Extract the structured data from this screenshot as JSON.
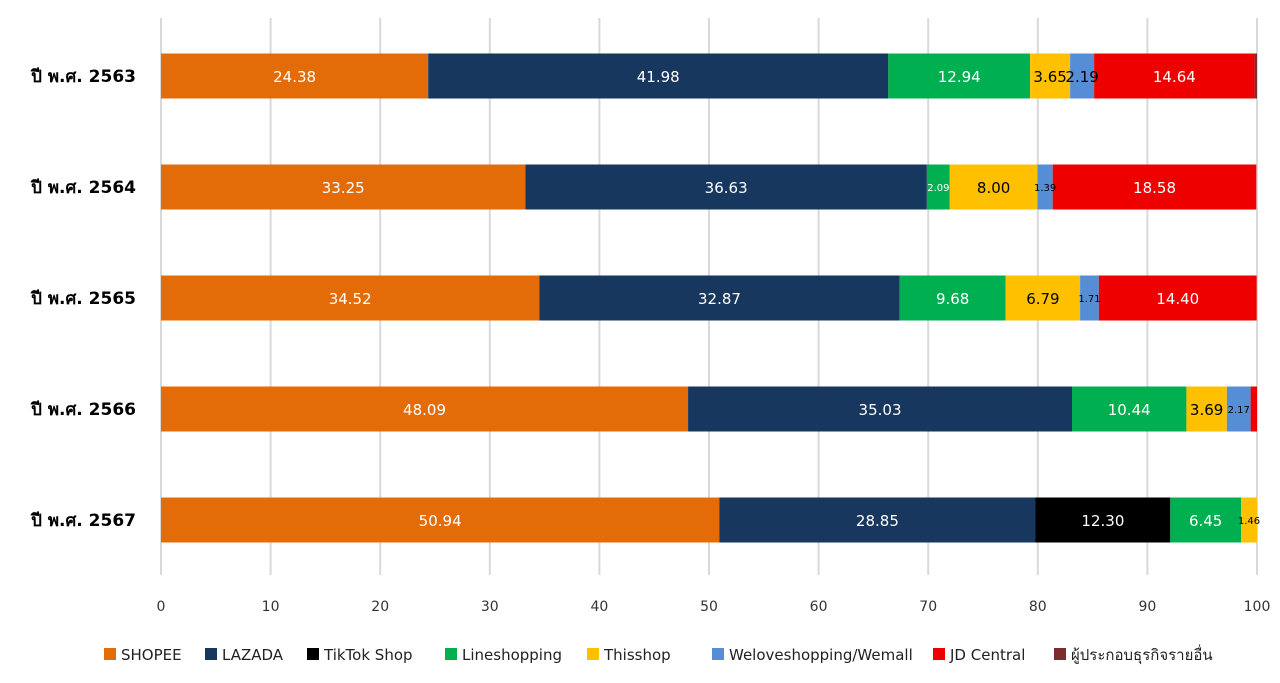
{
  "chart_data": {
    "type": "bar",
    "orientation": "horizontal",
    "stacked": true,
    "categories": [
      "ปี พ.ศ. 2563",
      "ปี พ.ศ. 2564",
      "ปี พ.ศ. 2565",
      "ปี พ.ศ. 2566",
      "ปี พ.ศ. 2567"
    ],
    "series": [
      {
        "name": "SHOPEE",
        "color": "#E36C09",
        "label_color": "#ffffff",
        "values": [
          24.38,
          33.25,
          34.52,
          48.09,
          50.94
        ],
        "labels": [
          "24.38",
          "33.25",
          "34.52",
          "48.09",
          "50.94"
        ]
      },
      {
        "name": "LAZADA",
        "color": "#17375E",
        "label_color": "#ffffff",
        "values": [
          41.98,
          36.63,
          32.87,
          35.03,
          28.85
        ],
        "labels": [
          "41.98",
          "36.63",
          "32.87",
          "35.03",
          "28.85"
        ]
      },
      {
        "name": "TikTok Shop",
        "color": "#000000",
        "label_color": "#ffffff",
        "values": [
          0,
          0,
          0,
          0,
          12.3
        ],
        "labels": [
          "",
          "",
          "",
          "",
          "12.30"
        ]
      },
      {
        "name": "Lineshopping",
        "color": "#00B050",
        "label_color": "#ffffff",
        "values": [
          12.94,
          2.09,
          9.68,
          10.44,
          6.45
        ],
        "labels": [
          "12.94",
          "2.09",
          "9.68",
          "10.44",
          "6.45"
        ]
      },
      {
        "name": "Thisshop",
        "color": "#FFC000",
        "label_color": "#000000",
        "values": [
          3.65,
          8.0,
          6.79,
          3.69,
          1.46
        ],
        "labels": [
          "3.65",
          "8.00",
          "6.79",
          "3.69",
          "1.46"
        ]
      },
      {
        "name": "Weloveshopping/Wemall",
        "color": "#558ED5",
        "label_color": "#000000",
        "values": [
          2.19,
          1.39,
          1.71,
          2.17,
          0
        ],
        "labels": [
          "2.19",
          "1.39",
          "1.71",
          "2.17",
          ""
        ]
      },
      {
        "name": "JD Central",
        "color": "#EE0000",
        "label_color": "#ffffff",
        "values": [
          14.64,
          18.58,
          14.4,
          0.58,
          0
        ],
        "labels": [
          "14.64",
          "18.58",
          "14.40",
          "",
          ""
        ]
      },
      {
        "name": "ผู้ประกอบธุรกิจรายอื่น",
        "color": "#7B2C2C",
        "label_color": "#ffffff",
        "values": [
          0.22,
          0,
          0,
          0,
          0
        ],
        "labels": [
          "",
          "",
          "",
          "",
          ""
        ]
      }
    ],
    "xlim": [
      0,
      100
    ],
    "xticks": [
      "0",
      "10",
      "20",
      "30",
      "40",
      "50",
      "60",
      "70",
      "80",
      "90",
      "100"
    ],
    "grid": "vertical",
    "legend_position": "bottom",
    "title": "",
    "xlabel": "",
    "ylabel": ""
  }
}
